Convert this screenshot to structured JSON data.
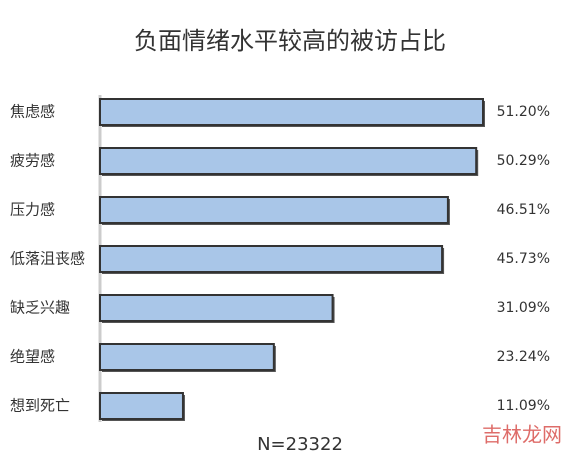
{
  "chart_data": {
    "type": "bar",
    "orientation": "horizontal",
    "title": "负面情绪水平较高的被访占比",
    "categories": [
      "焦虑感",
      "疲劳感",
      "压力感",
      "低落沮丧感",
      "缺乏兴趣",
      "绝望感",
      "想到死亡"
    ],
    "values": [
      51.2,
      50.29,
      46.51,
      45.73,
      31.09,
      23.24,
      11.09
    ],
    "value_labels": [
      "51.20%",
      "50.29%",
      "46.51%",
      "45.73%",
      "31.09%",
      "23.24%",
      "11.09%"
    ],
    "color": "#a9c6e8",
    "annotation": "N=23322",
    "watermark": "吉林龙网"
  }
}
